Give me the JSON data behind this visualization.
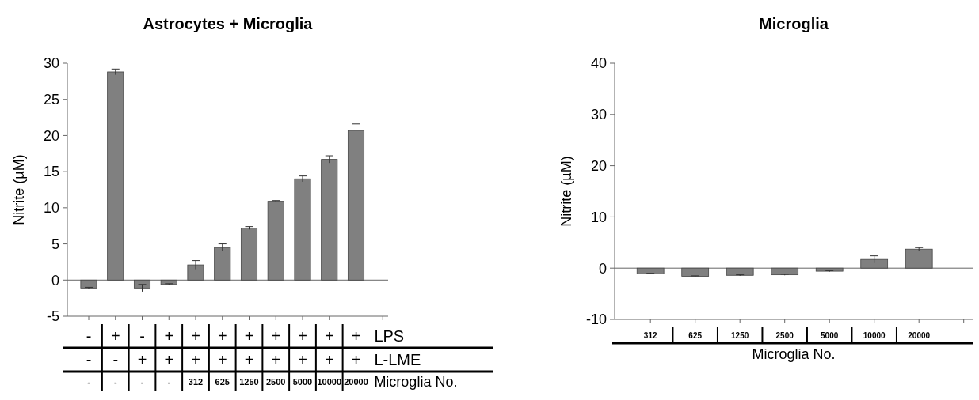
{
  "chart_data": [
    {
      "type": "bar",
      "title": "Astrocytes + Microglia",
      "ylabel": "Nitrite (µM)",
      "categories": [
        "-",
        "-",
        "-",
        "-",
        "312",
        "625",
        "1250",
        "2500",
        "5000",
        "10000",
        "20000"
      ],
      "values": [
        -1.1,
        28.8,
        -1.1,
        -0.6,
        2.1,
        4.5,
        7.2,
        10.9,
        14.0,
        16.7,
        20.7
      ],
      "errors": [
        0.1,
        0.4,
        0.5,
        0.1,
        0.6,
        0.5,
        0.2,
        0.1,
        0.4,
        0.5,
        0.9
      ],
      "color": "#808080",
      "ylim": [
        -5,
        30
      ],
      "yticks": [
        -5,
        0,
        5,
        10,
        15,
        20,
        25,
        30
      ],
      "annotations": [
        "-",
        "+",
        "-",
        "+",
        "+",
        "+",
        "+",
        "+",
        "+",
        "+",
        "+",
        "LPS",
        "-",
        "-",
        "+",
        "+",
        "+",
        "+",
        "+",
        "+",
        "+",
        "+",
        "+",
        "L-LME",
        "Microglia No."
      ]
    },
    {
      "type": "bar",
      "title": "Microglia",
      "ylabel": "Nitrite (µM)",
      "xlabel": "Microglia No.",
      "categories": [
        "312",
        "625",
        "1250",
        "2500",
        "5000",
        "10000",
        "20000"
      ],
      "values": [
        -1.1,
        -1.6,
        -1.4,
        -1.3,
        -0.6,
        1.7,
        3.7
      ],
      "errors": [
        0.1,
        0.1,
        0.1,
        0.1,
        0.1,
        0.7,
        0.3
      ],
      "color": "#808080",
      "ylim": [
        -10,
        40
      ],
      "yticks": [
        -10,
        0,
        10,
        20,
        30,
        40
      ]
    }
  ]
}
